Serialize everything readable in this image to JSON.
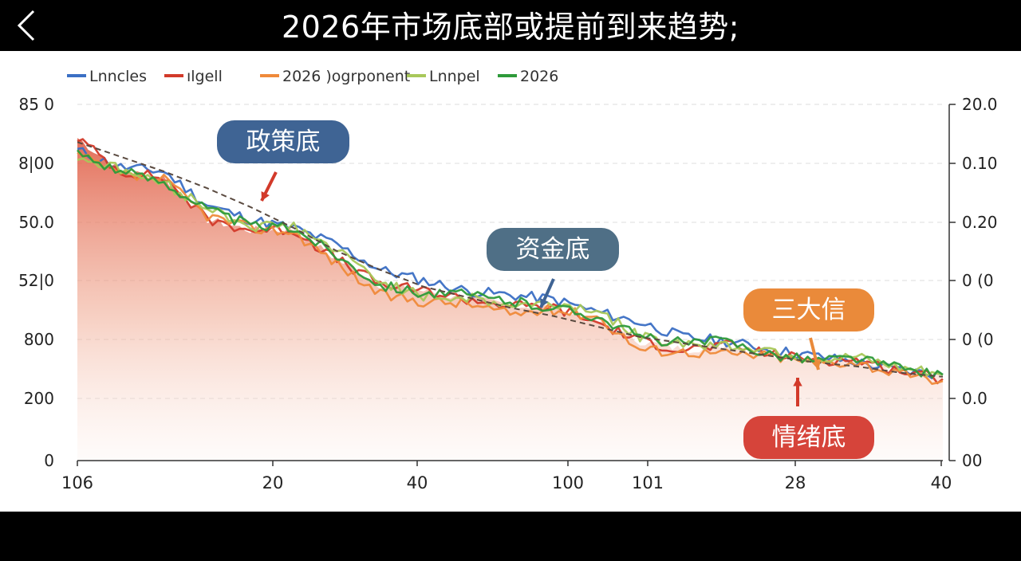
{
  "header": {
    "title": "2026年市场底部或提前到来趋势;",
    "back_icon": "chevron-left-icon"
  },
  "chart_data": {
    "type": "area",
    "title": "2026年市场底部或提前到来趋势;",
    "legend": {
      "placement": "top-left",
      "entries": [
        {
          "label": "Lnncles",
          "color": "#3b6fc4"
        },
        {
          "label": "ılgell",
          "color": "#d23a2a"
        },
        {
          "label": "2026 )ogrponent",
          "color": "#ef8a3a"
        },
        {
          "label": "Lnnpel",
          "color": "#a8c85a"
        },
        {
          "label": "2026",
          "color": "#2e9a3a"
        }
      ]
    },
    "x_ticks": [
      "106",
      "20",
      "40",
      "100",
      "101",
      "28",
      "40"
    ],
    "y_left_ticks": [
      "85 0",
      "8|00",
      "50.0",
      "52|0",
      "800",
      "200",
      "0"
    ],
    "y_right_ticks": [
      "20.0",
      "0.10",
      "0.20",
      "0 (0",
      "0 (0",
      "0.0",
      "00"
    ],
    "grid": true,
    "annotations": [
      {
        "label": "政策底",
        "color": "#3f6494",
        "arrow_color": "#d23a2a"
      },
      {
        "label": "资金底",
        "color": "#4f6f86",
        "arrow_color": "#3f6494"
      },
      {
        "label": "三大信",
        "color": "#ea8a3a",
        "arrow_color": "#ea8a3a"
      },
      {
        "label": "情绪底",
        "color": "#d6443a",
        "arrow_color": "#d23a2a"
      }
    ],
    "trend_line": {
      "style": "dashed",
      "color": "#5a4a40"
    },
    "series_x": [
      0,
      5,
      10,
      15,
      20,
      25,
      30,
      35,
      40,
      45,
      50,
      55,
      60,
      65,
      70,
      75,
      80,
      85,
      90,
      95,
      100
    ],
    "series": [
      {
        "color": "#3b6fc4",
        "values": [
          740,
          700,
          690,
          610,
          575,
          555,
          515,
          455,
          430,
          405,
          395,
          385,
          355,
          330,
          295,
          285,
          265,
          250,
          235,
          215,
          205
        ]
      },
      {
        "color": "#d23a2a",
        "values": [
          770,
          690,
          675,
          575,
          550,
          550,
          480,
          420,
          405,
          385,
          370,
          365,
          330,
          285,
          265,
          275,
          255,
          240,
          240,
          215,
          195
        ]
      },
      {
        "color": "#ef8a3a",
        "values": [
          730,
          680,
          670,
          585,
          555,
          545,
          470,
          395,
          380,
          375,
          350,
          360,
          345,
          265,
          260,
          255,
          250,
          235,
          235,
          205,
          190
        ]
      },
      {
        "color": "#a8c85a",
        "values": [
          725,
          695,
          660,
          605,
          560,
          560,
          500,
          430,
          390,
          390,
          370,
          375,
          360,
          295,
          280,
          275,
          265,
          240,
          245,
          220,
          205
        ]
      },
      {
        "color": "#2e9a3a",
        "values": [
          735,
          690,
          665,
          600,
          560,
          555,
          490,
          420,
          400,
          395,
          380,
          365,
          345,
          295,
          280,
          285,
          255,
          240,
          245,
          220,
          205
        ]
      }
    ],
    "trend_values": [
      760,
      725,
      690,
      650,
      605,
      555,
      500,
      455,
      415,
      390,
      365,
      345,
      320,
      295,
      280,
      265,
      250,
      235,
      225,
      210,
      200
    ]
  }
}
